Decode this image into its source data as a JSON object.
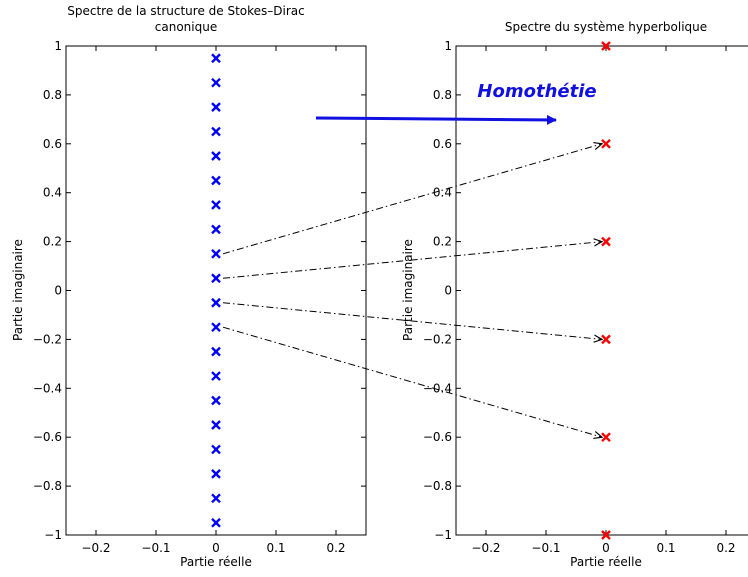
{
  "colors": {
    "left_markers": "#0000ff",
    "right_markers": "#ff0000",
    "arrow_main": "#1010e0",
    "arrows_dashdot": "#000000"
  },
  "annotation": {
    "text": "Homothétie"
  },
  "chart_data": [
    {
      "type": "scatter",
      "title_lines": [
        "Spectre de la structure de Stokes–Dirac",
        "canonique"
      ],
      "xlabel": "Partie réelle",
      "ylabel": "Partie imaginaire",
      "xlim": [
        -0.25,
        0.25
      ],
      "ylim": [
        -1,
        1
      ],
      "xticks": [
        -0.2,
        -0.1,
        0,
        0.1,
        0.2
      ],
      "xtick_labels": [
        "−0.2",
        "−0.1",
        "0",
        "0.1",
        "0.2"
      ],
      "yticks": [
        -1,
        -0.8,
        -0.6,
        -0.4,
        -0.2,
        0,
        0.2,
        0.4,
        0.6,
        0.8,
        1
      ],
      "ytick_labels": [
        "−1",
        "−0.8",
        "−0.6",
        "−0.4",
        "−0.2",
        "0",
        "0.2",
        "0.4",
        "0.6",
        "0.8",
        "1"
      ],
      "series": [
        {
          "marker": "x",
          "color": "#0000ff",
          "points": [
            [
              0,
              0.95
            ],
            [
              0,
              0.85
            ],
            [
              0,
              0.75
            ],
            [
              0,
              0.65
            ],
            [
              0,
              0.55
            ],
            [
              0,
              0.45
            ],
            [
              0,
              0.35
            ],
            [
              0,
              0.25
            ],
            [
              0,
              0.15
            ],
            [
              0,
              0.05
            ],
            [
              0,
              -0.05
            ],
            [
              0,
              -0.15
            ],
            [
              0,
              -0.25
            ],
            [
              0,
              -0.35
            ],
            [
              0,
              -0.45
            ],
            [
              0,
              -0.55
            ],
            [
              0,
              -0.65
            ],
            [
              0,
              -0.75
            ],
            [
              0,
              -0.85
            ],
            [
              0,
              -0.95
            ]
          ]
        }
      ]
    },
    {
      "type": "scatter",
      "title_lines": [
        "Spectre du système hyperbolique"
      ],
      "xlabel": "Partie réelle",
      "ylabel": "Partie imaginaire",
      "xlim": [
        -0.25,
        0.25
      ],
      "ylim": [
        -1,
        1
      ],
      "xticks": [
        -0.2,
        -0.1,
        0,
        0.1,
        0.2
      ],
      "xtick_labels": [
        "−0.2",
        "−0.1",
        "0",
        "0.1",
        "0.2"
      ],
      "yticks": [
        -1,
        -0.8,
        -0.6,
        -0.4,
        -0.2,
        0,
        0.2,
        0.4,
        0.6,
        0.8,
        1
      ],
      "ytick_labels": [
        "−1",
        "−0.8",
        "−0.6",
        "−0.4",
        "−0.2",
        "0",
        "0.2",
        "0.4",
        "0.6",
        "0.8",
        "1"
      ],
      "series": [
        {
          "marker": "x",
          "color": "#ff0000",
          "points": [
            [
              0,
              1
            ],
            [
              0,
              0.6
            ],
            [
              0,
              0.2
            ],
            [
              0,
              -0.2
            ],
            [
              0,
              -0.6
            ],
            [
              0,
              -1
            ]
          ]
        }
      ]
    }
  ],
  "mappings": [
    {
      "from": [
        0,
        0.15
      ],
      "to": [
        0,
        0.6
      ]
    },
    {
      "from": [
        0,
        0.05
      ],
      "to": [
        0,
        0.2
      ]
    },
    {
      "from": [
        0,
        -0.05
      ],
      "to": [
        0,
        -0.2
      ]
    },
    {
      "from": [
        0,
        -0.15
      ],
      "to": [
        0,
        -0.6
      ]
    }
  ]
}
